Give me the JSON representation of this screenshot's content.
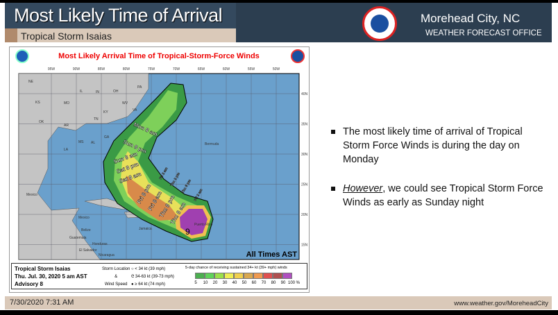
{
  "header": {
    "title": "Most Likely Time of Arrival",
    "subtitle": "Tropical Storm Isaias",
    "office_city": "Morehead City, NC",
    "office_type": "WEATHER FORECAST OFFICE",
    "logo_text": "NATIONAL WEATHER SERVICE"
  },
  "map": {
    "title": "Most Likely Arrival Time of Tropical-Storm-Force Winds",
    "lon_ticks": [
      "95W",
      "90W",
      "85W",
      "80W",
      "75W",
      "70W",
      "65W",
      "60W",
      "55W",
      "50W"
    ],
    "lat_ticks": [
      "40N",
      "35N",
      "30N",
      "25N",
      "20N",
      "15N"
    ],
    "state_labels": [
      "NE",
      "IL",
      "IN",
      "OH",
      "PA",
      "KS",
      "MO",
      "WV",
      "VA",
      "KY",
      "OK",
      "AR",
      "TN",
      "MS",
      "AL",
      "GA",
      "LA",
      "Mexico",
      "Mexico",
      "Belize",
      "Guatemala",
      "Honduras",
      "El Salvador",
      "Nicaragua",
      "Jamaica",
      "Bermuda",
      "Puerto Rico"
    ],
    "time_labels": [
      "Mon 8 am",
      "Sun 8 pm",
      "Sun 8 am",
      "Sat 8 pm",
      "Sat 8 am",
      "Fri 8 pm",
      "Fri 8 am",
      "Thu 8 pm",
      "Thu 8 am",
      "Fri 2 am",
      "Thu 2 pm",
      "Thu 8 pm",
      "Fri 2 am"
    ],
    "storm_symbol": "9",
    "times_note": "All Times AST",
    "legend": {
      "storm": "Tropical Storm Isaias",
      "date": "Thu. Jul. 30, 2020  5 am AST",
      "advisory": "Advisory 8",
      "location_label": [
        "Storm Location",
        "&",
        "Wind Speed"
      ],
      "keys": [
        "< 34 kt (39 mph)",
        "34-63 kt (39-73 mph)",
        "≥ 64 kt (74 mph)"
      ],
      "scale_title": "5-day chance of receiving sustained 34+ kt (39+ mph) winds",
      "scale_colors": [
        "#4caf50",
        "#5fd35a",
        "#9be04a",
        "#eeee55",
        "#f0d050",
        "#d9a850",
        "#f09a50",
        "#e05050",
        "#b05050",
        "#b050c0"
      ],
      "scale_ticks": [
        "5",
        "10",
        "20",
        "30",
        "40",
        "50",
        "60",
        "70",
        "80",
        "90",
        "100 %"
      ]
    }
  },
  "bullets": [
    {
      "text": "The most likely time of arrival of Tropical Storm Force Winds is during the day on Monday"
    },
    {
      "em": "However",
      "text": ", we could see Tropical Storm Force Winds as early as Sunday night"
    }
  ],
  "footer": {
    "date": "7/30/2020 7:31 AM",
    "url": "www.weather.gov/MoreheadCity"
  }
}
